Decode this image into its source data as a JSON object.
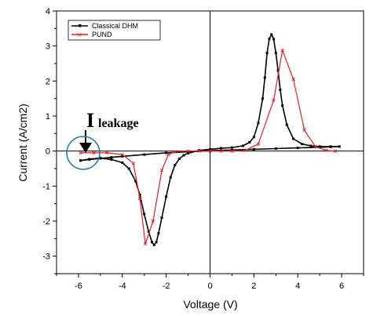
{
  "chart_data": {
    "type": "line",
    "xlabel": "Voltage (V)",
    "ylabel": "Current (A/cm2)",
    "xlim": [
      -7,
      7
    ],
    "ylim": [
      -3.5,
      4
    ],
    "xticks": [
      -6,
      -4,
      -2,
      0,
      2,
      4,
      6
    ],
    "yticks": [
      -3,
      -2,
      -1,
      0,
      1,
      2,
      3,
      4
    ],
    "grid": false,
    "legend": {
      "position": "top-left",
      "entries": [
        "Classical DHM",
        "PUND"
      ]
    },
    "annotation": {
      "main": "I",
      "sub": "leakage",
      "points_to": [
        -5.8,
        -0.27
      ]
    },
    "series": [
      {
        "name": "Classical DHM",
        "color": "#000000",
        "marker": "square",
        "x": [
          -5.9,
          -5.5,
          -5.0,
          -4.5,
          -4.0,
          -3.7,
          -3.4,
          -3.2,
          -3.0,
          -2.8,
          -2.65,
          -2.55,
          -2.45,
          -2.35,
          -2.2,
          -2.0,
          -1.8,
          -1.6,
          -1.4,
          -1.2,
          -1.0,
          -0.5,
          0.0,
          0.5,
          1.0,
          1.5,
          1.8,
          2.0,
          2.2,
          2.4,
          2.5,
          2.6,
          2.7,
          2.8,
          2.9,
          3.0,
          3.1,
          3.2,
          3.3,
          3.5,
          3.8,
          4.2,
          4.6,
          5.0,
          5.5,
          5.9,
          5.5,
          5.0,
          4.0,
          3.0,
          2.0,
          1.0,
          0.0,
          -1.0,
          -2.0,
          -3.0,
          -4.0,
          -4.5,
          -5.0,
          -5.5,
          -5.9
        ],
        "y": [
          -0.27,
          -0.23,
          -0.2,
          -0.24,
          -0.33,
          -0.5,
          -0.85,
          -1.25,
          -1.8,
          -2.3,
          -2.6,
          -2.68,
          -2.6,
          -2.35,
          -1.9,
          -1.3,
          -0.75,
          -0.4,
          -0.22,
          -0.12,
          -0.06,
          0.02,
          0.05,
          0.08,
          0.1,
          0.15,
          0.25,
          0.4,
          0.8,
          1.5,
          2.1,
          2.8,
          3.2,
          3.33,
          3.2,
          2.8,
          2.3,
          1.75,
          1.3,
          0.75,
          0.35,
          0.2,
          0.15,
          0.13,
          0.13,
          0.13,
          0.12,
          0.11,
          0.09,
          0.07,
          0.05,
          0.03,
          0.01,
          -0.02,
          -0.05,
          -0.1,
          -0.15,
          -0.18,
          -0.21,
          -0.24,
          -0.27
        ]
      },
      {
        "name": "PUND",
        "color": "#e02020",
        "marker": "cross",
        "x": [
          -5.9,
          -5.3,
          -4.7,
          -4.0,
          -3.5,
          -3.2,
          -2.95,
          -2.6,
          -2.2,
          -1.9,
          -1.6,
          -1.0,
          -0.5,
          0.0,
          0.5,
          1.0,
          1.6,
          2.2,
          2.9,
          3.3,
          3.8,
          4.3,
          4.8,
          5.3,
          5.7
        ],
        "y": [
          -0.05,
          -0.05,
          -0.05,
          -0.1,
          -0.35,
          -1.35,
          -2.65,
          -2.0,
          -0.55,
          -0.1,
          -0.02,
          0.0,
          0.0,
          0.0,
          0.0,
          0.0,
          0.02,
          0.2,
          1.45,
          2.88,
          2.05,
          0.6,
          0.13,
          0.02,
          0.0
        ]
      }
    ]
  }
}
